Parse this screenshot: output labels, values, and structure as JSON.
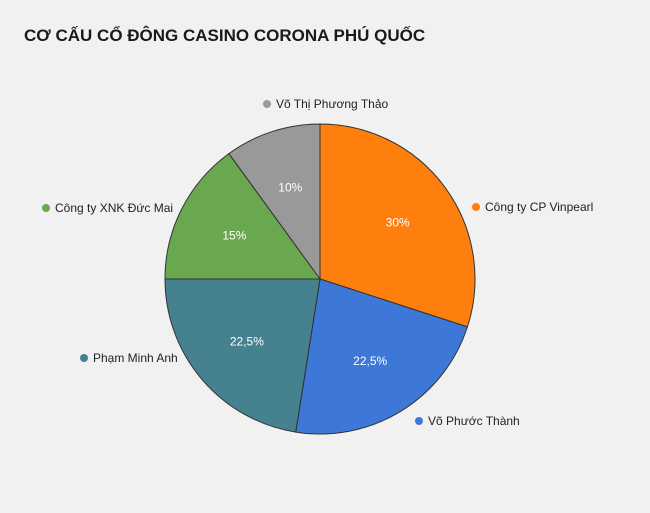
{
  "chart_data": {
    "type": "pie",
    "title": "CƠ CẤU CỔ ĐÔNG CASINO CORONA PHÚ QUỐC",
    "legend": "around-slices",
    "slices": [
      {
        "name": "Công ty CP Vinpearl",
        "value": 30,
        "label": "30%",
        "color": "#ff7f0e"
      },
      {
        "name": "Võ Phước Thành",
        "value": 22.5,
        "label": "22,5%",
        "color": "#3d78d8"
      },
      {
        "name": "Phạm Minh Anh",
        "value": 22.5,
        "label": "22,5%",
        "color": "#45818e"
      },
      {
        "name": "Công ty XNK Đức Mai",
        "value": 15,
        "label": "15%",
        "color": "#6aa84f"
      },
      {
        "name": "Võ Thị Phương Thảo",
        "value": 10,
        "label": "10%",
        "color": "#999999"
      }
    ]
  }
}
